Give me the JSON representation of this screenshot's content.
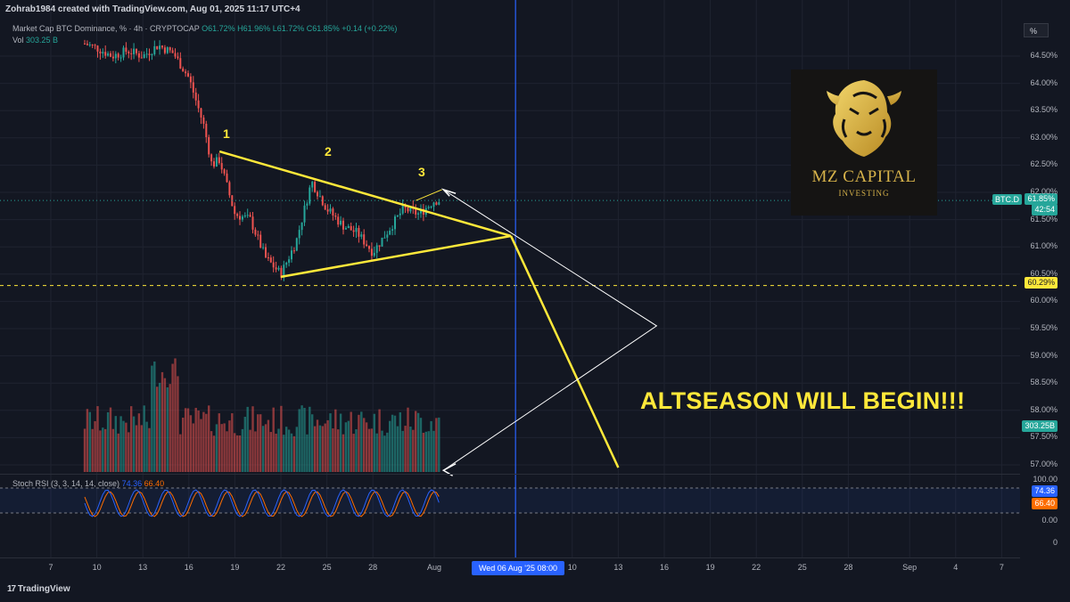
{
  "caption": "Zohrab1984 created with TradingView.com, Aug 01, 2025 11:17 UTC+4",
  "legend": {
    "symbol": "Market Cap BTC Dominance, % · 4h · CRYPTOCAP",
    "open": "O61.72%",
    "high": "H61.96%",
    "low": "L61.72%",
    "close": "C61.85%",
    "change": "+0.14 (+0.22%)",
    "vol_label": "Vol",
    "vol_value": "303.25 B"
  },
  "unit_button": "%",
  "logo": {
    "title": "MZ CAPITAL",
    "subtitle": "INVESTING"
  },
  "headline": "ALTSEASON WILL BEGIN!!!",
  "wave_labels": [
    "1",
    "2",
    "3"
  ],
  "ticker_badge": "BTC.D",
  "price_badge": {
    "price": "61.85%",
    "countdown": "42:54"
  },
  "support_badge": "60.29%",
  "volume_badge": "303.25B",
  "stoch": {
    "legend": "Stoch RSI (3, 3, 14, 14, close)",
    "k_value": "74.36",
    "d_value": "66.40",
    "k_color": "#2962ff",
    "d_color": "#ff6d00",
    "y_ticks": [
      "100.00",
      "0.00",
      "0"
    ]
  },
  "current_date": "Wed 06 Aug '25   08:00",
  "footer": "TradingView",
  "colors": {
    "up": "#26a69a",
    "down": "#ef5350",
    "pattern": "#ffe83a",
    "marker": "#2962ff",
    "arrow": "#ffffff",
    "logo_gold": "#d6b24a"
  },
  "chart_data": {
    "type": "candlestick",
    "title": "Market Cap BTC Dominance, % · 4h · CRYPTOCAP",
    "y_unit": "%",
    "y_ticks": [
      "64.50%",
      "64.00%",
      "63.50%",
      "63.00%",
      "62.50%",
      "62.00%",
      "61.50%",
      "61.00%",
      "60.50%",
      "60.00%",
      "59.50%",
      "59.00%",
      "58.50%",
      "58.00%",
      "57.50%",
      "57.00%"
    ],
    "ylim": [
      56.6,
      65.0
    ],
    "x_ticks": [
      "7",
      "10",
      "13",
      "16",
      "19",
      "22",
      "25",
      "28",
      "Aug",
      "10",
      "13",
      "16",
      "19",
      "22",
      "25",
      "28",
      "Sep",
      "4",
      "7"
    ],
    "close_path": [
      [
        "Jul 05",
        65.0
      ],
      [
        "Jul 06",
        64.95
      ],
      [
        "Jul 07",
        64.85
      ],
      [
        "Jul 08",
        64.9
      ],
      [
        "Jul 09",
        64.75
      ],
      [
        "Jul 10",
        64.65
      ],
      [
        "Jul 11",
        64.5
      ],
      [
        "Jul 12",
        64.6
      ],
      [
        "Jul 13",
        64.5
      ],
      [
        "Jul 14",
        64.7
      ],
      [
        "Jul 15",
        64.55
      ],
      [
        "Jul 16",
        64.1
      ],
      [
        "Jul 17",
        63.2
      ],
      [
        "Jul 17.5",
        62.5
      ],
      [
        "Jul 18",
        62.6
      ],
      [
        "Jul 19",
        61.6
      ],
      [
        "Jul 20",
        61.5
      ],
      [
        "Jul 21",
        60.8
      ],
      [
        "Jul 22",
        60.5
      ],
      [
        "Jul 23",
        61.1
      ],
      [
        "Jul 24",
        62.2
      ],
      [
        "Jul 25",
        61.7
      ],
      [
        "Jul 26",
        61.4
      ],
      [
        "Jul 27",
        61.25
      ],
      [
        "Jul 28",
        60.9
      ],
      [
        "Jul 29",
        61.3
      ],
      [
        "Jul 30",
        61.7
      ],
      [
        "Jul 31",
        61.6
      ],
      [
        "Aug 01",
        61.85
      ]
    ],
    "last_price": 61.85,
    "support_level": 60.29,
    "triangle": {
      "upper": [
        [
          "Jul 18",
          62.75
        ],
        [
          "Aug 06",
          61.2
        ]
      ],
      "lower": [
        [
          "Jul 22",
          60.45
        ],
        [
          "Aug 06",
          61.2
        ]
      ]
    },
    "projection": [
      [
        "Aug 06",
        61.2
      ],
      [
        "Aug 13",
        56.95
      ]
    ],
    "vertical_marker": "Wed 06 Aug '25 08:00",
    "annotation": "ALTSEASON WILL BEGIN!!!",
    "volume": {
      "last": "303.25B"
    },
    "stoch_rsi": {
      "k": 74.36,
      "d": 66.4,
      "levels": [
        80,
        20
      ]
    }
  }
}
